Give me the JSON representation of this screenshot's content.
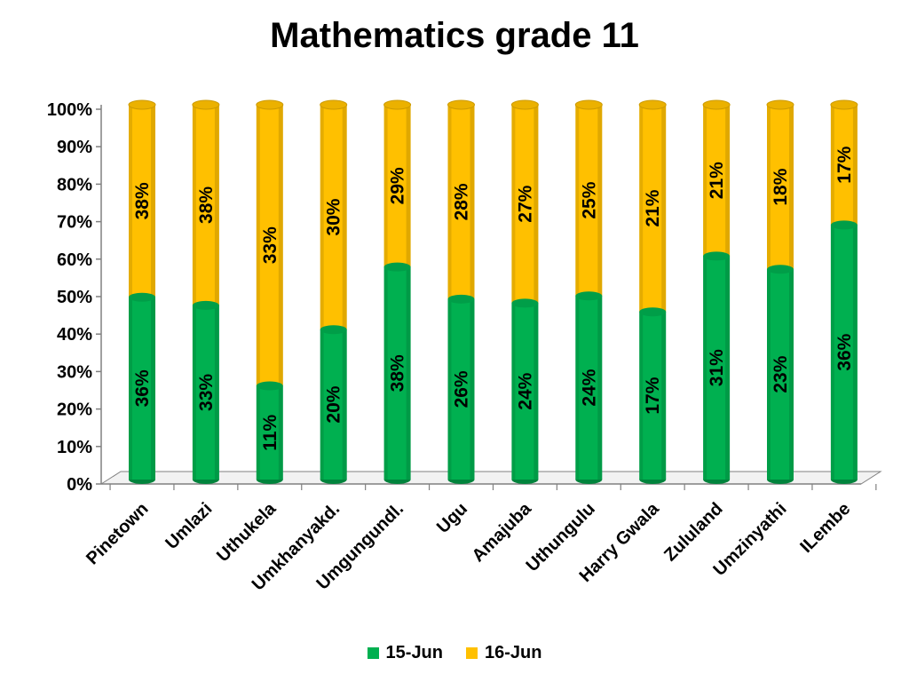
{
  "chart_data": {
    "type": "bar",
    "stacked": true,
    "percent_stacked": true,
    "title": "Mathematics grade 11",
    "categories": [
      "Pinetown",
      "Umlazi",
      "Uthukela",
      "Umkhanyakd.",
      "Umgungundl.",
      "Ugu",
      "Amajuba",
      "Uthungulu",
      "Harry Gwala",
      "Zululand",
      "Umzinyathi",
      "ILembe"
    ],
    "series": [
      {
        "name": "15-Jun",
        "color": "#00B050",
        "values": [
          36,
          33,
          11,
          20,
          38,
          26,
          24,
          24,
          17,
          31,
          23,
          36
        ]
      },
      {
        "name": "16-Jun",
        "color": "#FFC000",
        "values": [
          38,
          38,
          33,
          30,
          29,
          28,
          27,
          25,
          21,
          21,
          18,
          17
        ]
      }
    ],
    "data_labels": {
      "15-Jun": [
        "36%",
        "33%",
        "11%",
        "20%",
        "38%",
        "26%",
        "24%",
        "24%",
        "17%",
        "31%",
        "23%",
        "36%"
      ],
      "16-Jun": [
        "38%",
        "38%",
        "33%",
        "30%",
        "29%",
        "28%",
        "27%",
        "25%",
        "21%",
        "21%",
        "18%",
        "17%"
      ]
    },
    "y_ticks": [
      "0%",
      "10%",
      "20%",
      "30%",
      "40%",
      "50%",
      "60%",
      "70%",
      "80%",
      "90%",
      "100%"
    ],
    "ylim": [
      0,
      100
    ],
    "grid": false,
    "legend_position": "bottom",
    "bar_shape": "cylinder"
  }
}
